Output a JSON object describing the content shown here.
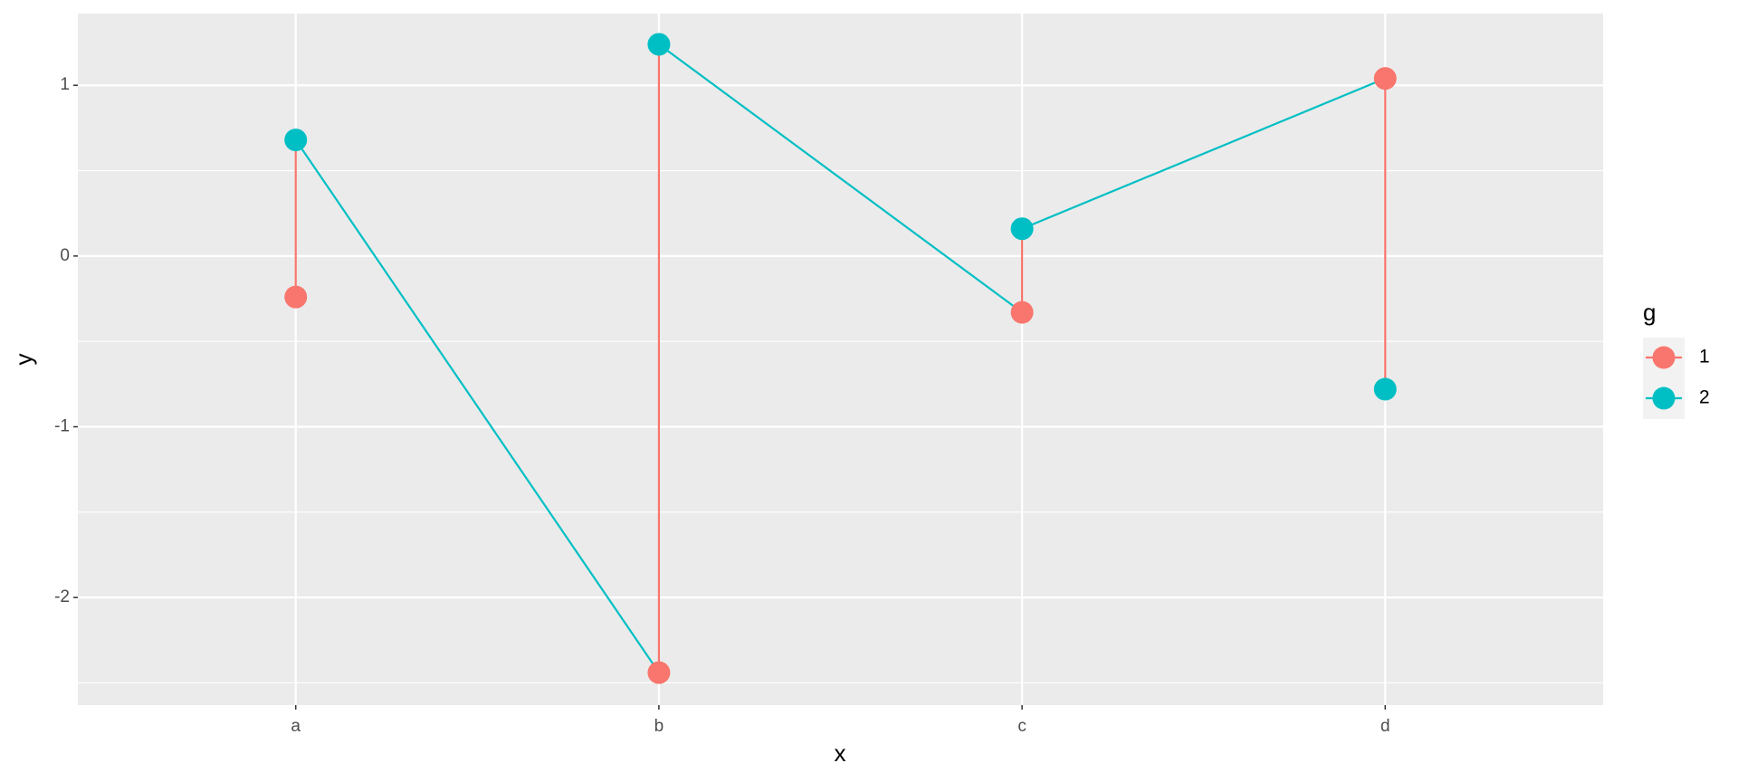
{
  "chart_data": {
    "type": "path",
    "x_label": "x",
    "y_label": "y",
    "categories": [
      "a",
      "b",
      "c",
      "d"
    ],
    "legend_title": "g",
    "series": [
      {
        "name": "1",
        "color": "#F8766D",
        "values": [
          -0.24,
          -2.44,
          -0.33,
          1.04
        ]
      },
      {
        "name": "2",
        "color": "#00BFC4",
        "values": [
          0.68,
          1.24,
          0.16,
          -0.78
        ]
      }
    ],
    "ylim": [
      -2.63,
      1.42
    ],
    "yticks": [
      -2,
      -1,
      0,
      1
    ],
    "grid": true,
    "legend": "right"
  }
}
